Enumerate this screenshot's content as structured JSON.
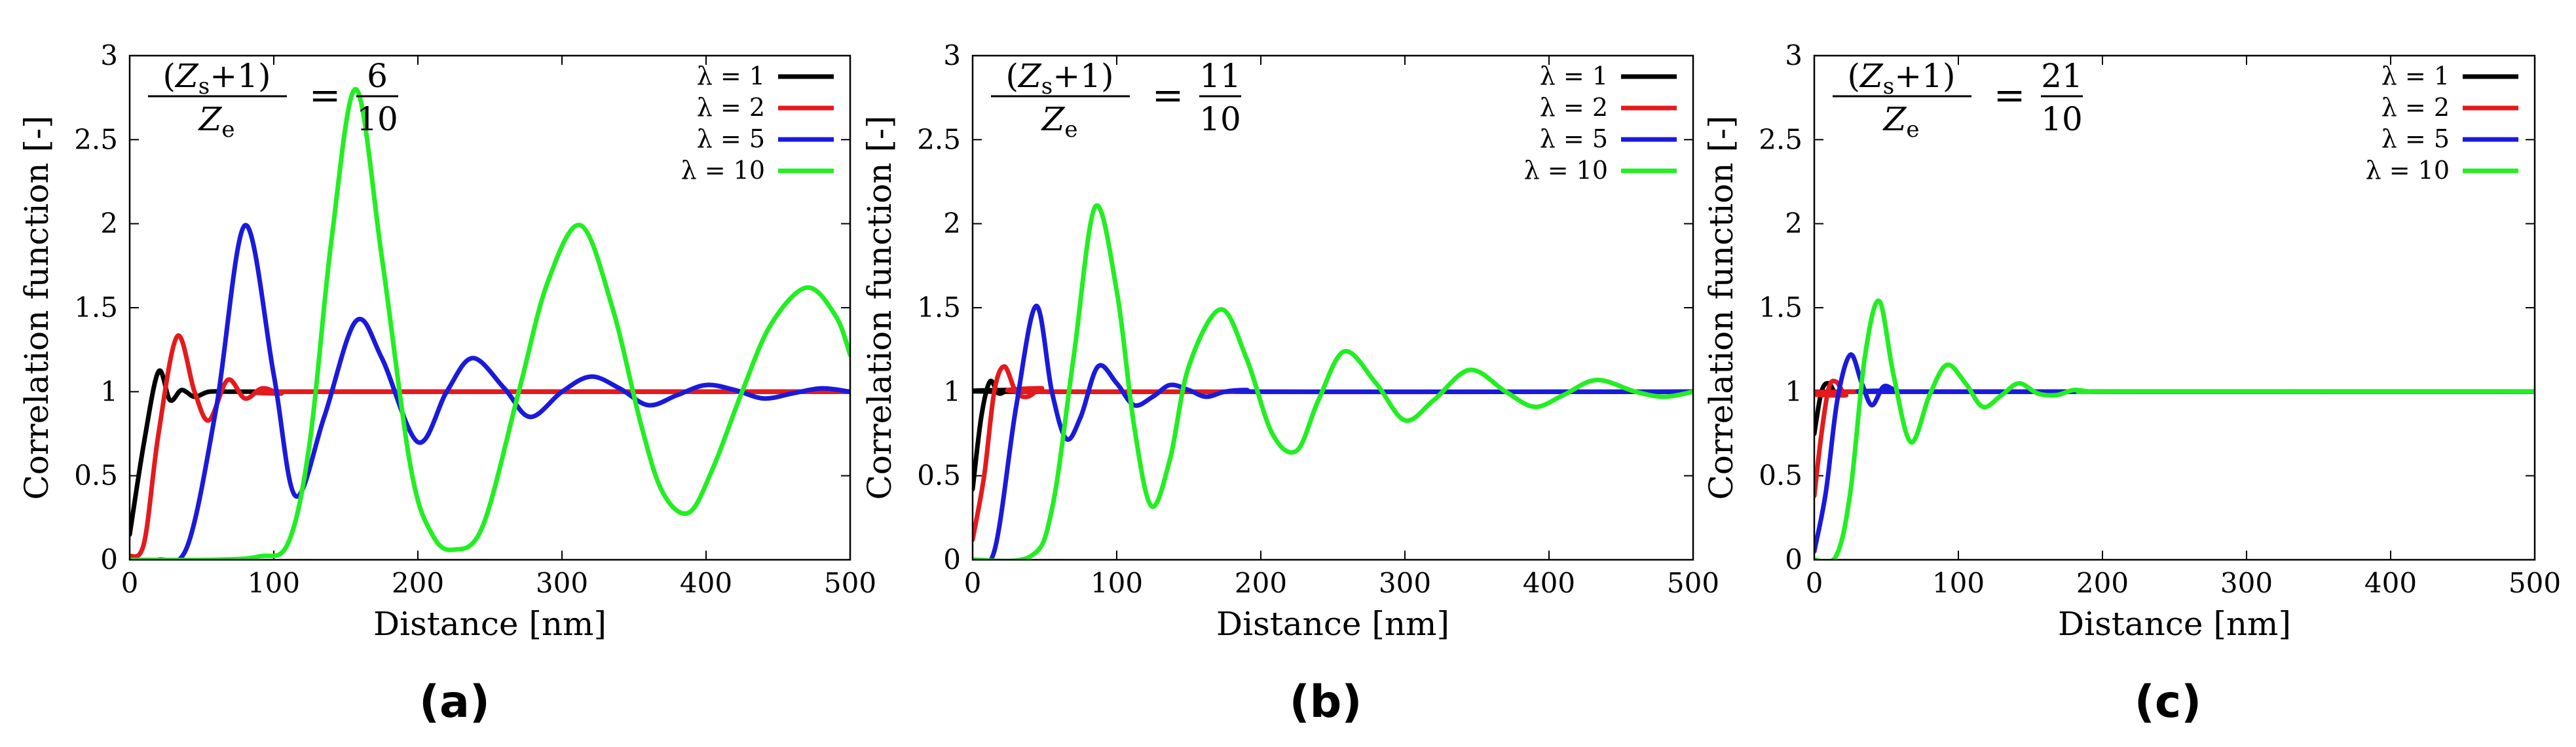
{
  "colors": {
    "lambda1": "#000000",
    "lambda2": "#e41a1c",
    "lambda5": "#1a1adb",
    "lambda10": "#22ee22"
  },
  "chart_data": [
    {
      "type": "line",
      "panel_label": "(a)",
      "formula": {
        "lhs_num": "(Zs+1)",
        "lhs_den": "Ze",
        "eq": "=",
        "rhs_num": "6",
        "rhs_den": "10"
      },
      "xlabel": "Distance [nm]",
      "ylabel": "Correlation function [-]",
      "xlim": [
        0,
        500
      ],
      "ylim": [
        0,
        3
      ],
      "xticks": [
        0,
        100,
        200,
        300,
        400,
        500
      ],
      "yticks": [
        0,
        0.5,
        1,
        1.5,
        2,
        2.5,
        3
      ],
      "ytick_labels": [
        "0",
        "0.5",
        "1",
        "1.5",
        "2",
        "2.5",
        "3"
      ],
      "legend": "top-right",
      "series": [
        {
          "name": "λ = 1",
          "color_key": "lambda1",
          "x": [
            0,
            10,
            20,
            28,
            36,
            45,
            55,
            70,
            90,
            120,
            500
          ],
          "y": [
            0.15,
            0.7,
            1.12,
            0.95,
            1.01,
            0.97,
            1.0,
            1.0,
            1.0,
            1.0,
            1.0
          ]
        },
        {
          "name": "λ = 2",
          "color_key": "lambda2",
          "x": [
            0,
            10,
            20,
            33,
            45,
            55,
            68,
            80,
            92,
            105,
            120,
            500
          ],
          "y": [
            0.02,
            0.1,
            0.75,
            1.33,
            1.0,
            0.83,
            1.07,
            0.96,
            1.02,
            0.99,
            1.0,
            1.0
          ]
        },
        {
          "name": "λ = 5",
          "color_key": "lambda5",
          "x": [
            0,
            20,
            40,
            60,
            80,
            100,
            115,
            135,
            157,
            175,
            200,
            220,
            238,
            260,
            278,
            300,
            320,
            340,
            360,
            380,
            400,
            420,
            440,
            460,
            480,
            500
          ],
          "y": [
            0,
            0.0,
            0.08,
            0.9,
            1.99,
            1.1,
            0.38,
            0.85,
            1.42,
            1.2,
            0.7,
            1.0,
            1.2,
            1.02,
            0.85,
            1.0,
            1.09,
            1.02,
            0.92,
            0.98,
            1.04,
            1.01,
            0.96,
            0.99,
            1.02,
            1.0
          ]
        },
        {
          "name": "λ = 10",
          "color_key": "lambda10",
          "x": [
            0,
            60,
            90,
            110,
            125,
            140,
            157,
            175,
            195,
            210,
            225,
            245,
            270,
            290,
            313,
            335,
            355,
            370,
            388,
            405,
            425,
            445,
            470,
            490,
            500
          ],
          "y": [
            0,
            0.0,
            0.02,
            0.1,
            0.7,
            1.9,
            2.8,
            1.8,
            0.55,
            0.15,
            0.06,
            0.2,
            1.0,
            1.65,
            1.99,
            1.5,
            0.8,
            0.4,
            0.28,
            0.55,
            1.0,
            1.4,
            1.62,
            1.45,
            1.22
          ]
        }
      ]
    },
    {
      "type": "line",
      "panel_label": "(b)",
      "formula": {
        "lhs_num": "(Zs+1)",
        "lhs_den": "Ze",
        "eq": "=",
        "rhs_num": "11",
        "rhs_den": "10"
      },
      "xlabel": "Distance [nm]",
      "ylabel": "Correlation function [-]",
      "xlim": [
        0,
        500
      ],
      "ylim": [
        0,
        3
      ],
      "xticks": [
        0,
        100,
        200,
        300,
        400,
        500
      ],
      "yticks": [
        0,
        0.5,
        1,
        1.5,
        2,
        2.5,
        3
      ],
      "ytick_labels": [
        "0",
        "0.5",
        "1",
        "1.5",
        "2",
        "2.5",
        "3"
      ],
      "legend": "top-right",
      "series": [
        {
          "name": "λ = 1",
          "color_key": "lambda1",
          "x": [
            0,
            6,
            12,
            18,
            25,
            35,
            500
          ],
          "y": [
            0.42,
            0.85,
            1.06,
            0.99,
            1.01,
            1.0,
            1.0
          ]
        },
        {
          "name": "λ = 2",
          "color_key": "lambda2",
          "x": [
            0,
            8,
            15,
            22,
            30,
            38,
            48,
            60,
            500
          ],
          "y": [
            0.12,
            0.5,
            1.0,
            1.15,
            1.0,
            0.97,
            1.02,
            1.0,
            1.0
          ]
        },
        {
          "name": "λ = 5",
          "color_key": "lambda5",
          "x": [
            0,
            15,
            30,
            44,
            55,
            65,
            75,
            87,
            100,
            112,
            125,
            137,
            150,
            162,
            175,
            190,
            210,
            500
          ],
          "y": [
            0,
            0.05,
            0.9,
            1.51,
            1.0,
            0.72,
            0.85,
            1.15,
            1.05,
            0.92,
            0.97,
            1.04,
            1.01,
            0.97,
            1.0,
            1.01,
            1.0,
            1.0
          ]
        },
        {
          "name": "λ = 10",
          "color_key": "lambda10",
          "x": [
            0,
            40,
            55,
            70,
            85,
            100,
            112,
            124,
            137,
            150,
            172,
            190,
            208,
            225,
            240,
            258,
            280,
            300,
            320,
            345,
            370,
            390,
            410,
            433,
            460,
            480,
            500
          ],
          "y": [
            0,
            0.02,
            0.3,
            1.2,
            2.1,
            1.6,
            0.8,
            0.32,
            0.6,
            1.15,
            1.49,
            1.2,
            0.75,
            0.65,
            0.95,
            1.24,
            1.05,
            0.83,
            0.95,
            1.13,
            1.0,
            0.91,
            0.98,
            1.07,
            1.0,
            0.97,
            1.0
          ]
        }
      ]
    },
    {
      "type": "line",
      "panel_label": "(c)",
      "formula": {
        "lhs_num": "(Zs+1)",
        "lhs_den": "Ze",
        "eq": "=",
        "rhs_num": "21",
        "rhs_den": "10"
      },
      "xlabel": "Distance [nm]",
      "ylabel": "Correlation function [-]",
      "xlim": [
        0,
        500
      ],
      "ylim": [
        0,
        3
      ],
      "xticks": [
        0,
        100,
        200,
        300,
        400,
        500
      ],
      "yticks": [
        0,
        0.5,
        1,
        1.5,
        2,
        2.5,
        3
      ],
      "ytick_labels": [
        "0",
        "0.5",
        "1",
        "1.5",
        "2",
        "2.5",
        "3"
      ],
      "legend": "top-right",
      "series": [
        {
          "name": "λ = 1",
          "color_key": "lambda1",
          "x": [
            0,
            5,
            10,
            15,
            22,
            500
          ],
          "y": [
            0.75,
            1.0,
            1.05,
            0.99,
            1.0,
            1.0
          ]
        },
        {
          "name": "λ = 2",
          "color_key": "lambda2",
          "x": [
            0,
            5,
            10,
            15,
            22,
            30,
            500
          ],
          "y": [
            0.38,
            0.75,
            1.02,
            1.06,
            0.98,
            1.0,
            1.0
          ]
        },
        {
          "name": "λ = 5",
          "color_key": "lambda5",
          "x": [
            0,
            8,
            16,
            25,
            33,
            40,
            48,
            56,
            65,
            500
          ],
          "y": [
            0.05,
            0.4,
            0.95,
            1.22,
            1.05,
            0.92,
            1.03,
            1.01,
            1.0,
            1.0
          ]
        },
        {
          "name": "λ = 10",
          "color_key": "lambda10",
          "x": [
            0,
            15,
            25,
            35,
            45,
            55,
            67,
            80,
            92,
            105,
            117,
            130,
            142,
            155,
            168,
            180,
            192,
            210,
            500
          ],
          "y": [
            0,
            0.02,
            0.4,
            1.2,
            1.54,
            1.1,
            0.7,
            0.98,
            1.16,
            1.05,
            0.91,
            0.98,
            1.05,
            0.99,
            0.98,
            1.01,
            1.0,
            1.0,
            1.0
          ]
        }
      ]
    }
  ]
}
